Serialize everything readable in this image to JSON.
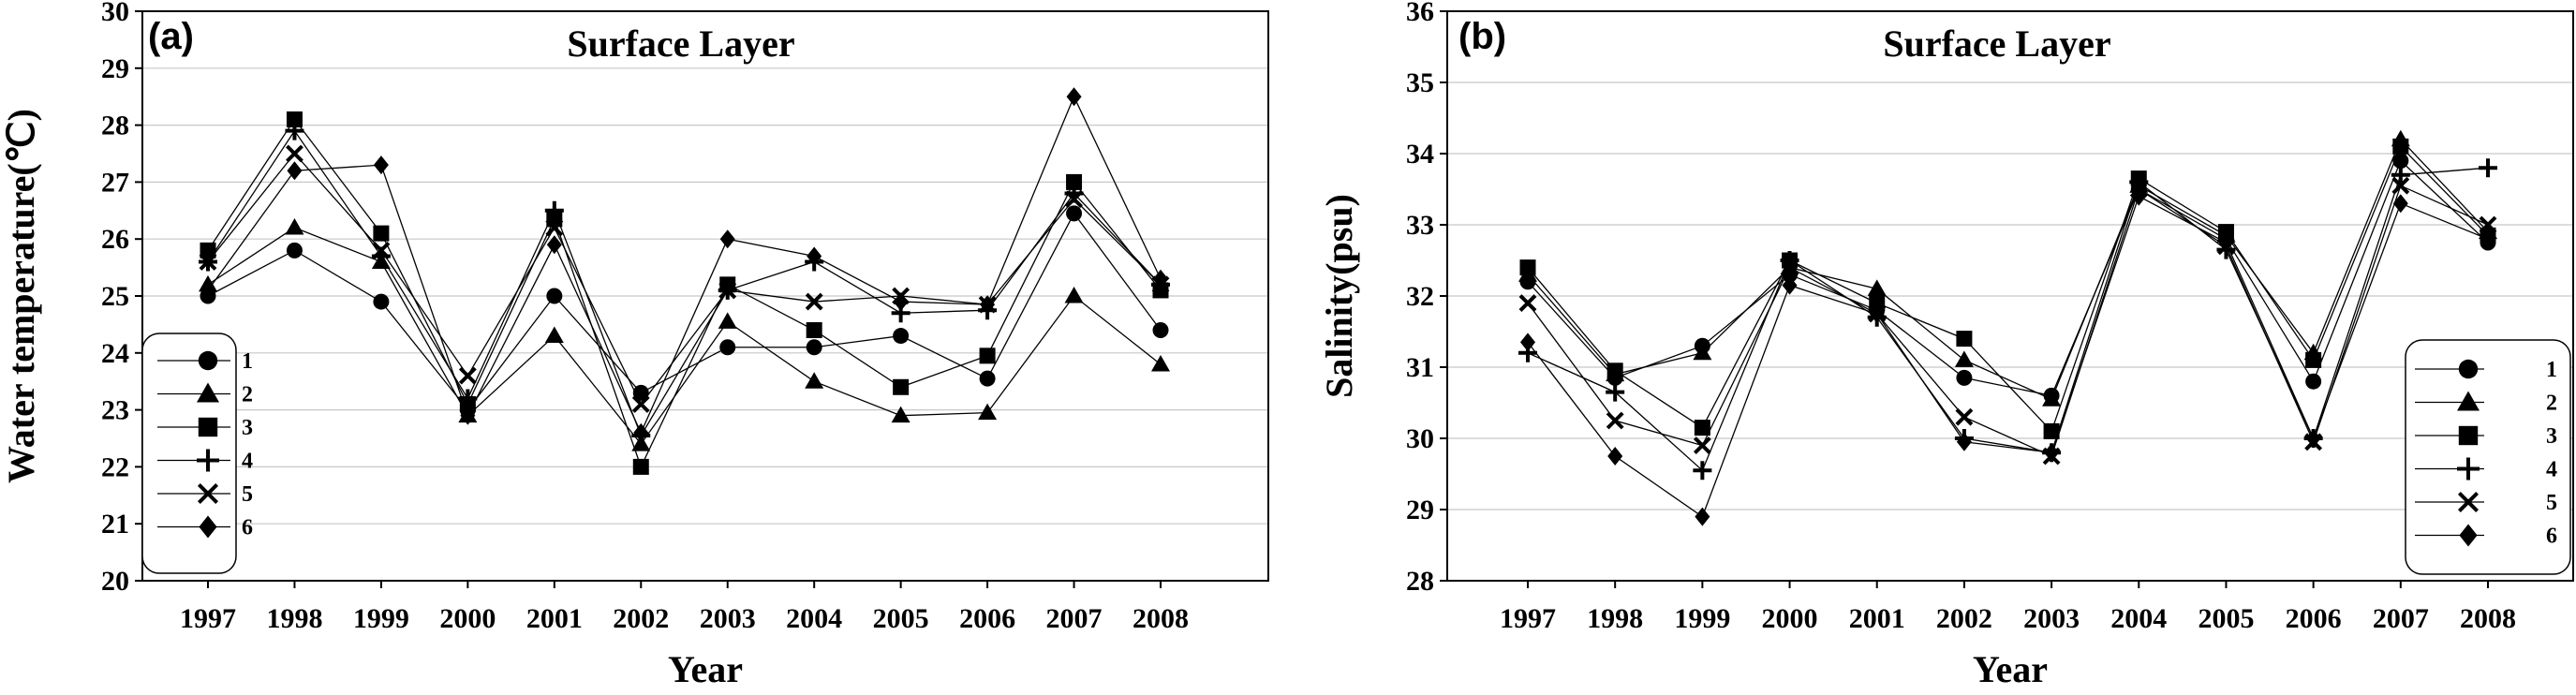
{
  "colors": {
    "line": "#000000",
    "grid": "#c8c8c8",
    "background": "#ffffff"
  },
  "chart_data": [
    {
      "panel_label": "(a)",
      "type": "line",
      "title": "Surface Layer",
      "xlabel": "Year",
      "ylabel": "Water temperature(℃)",
      "categories": [
        "1997",
        "1998",
        "1999",
        "2000",
        "2001",
        "2002",
        "2003",
        "2004",
        "2005",
        "2006",
        "2007",
        "2008"
      ],
      "ylim": [
        20,
        30
      ],
      "yticks": [
        20,
        21,
        22,
        23,
        24,
        25,
        26,
        27,
        28,
        29,
        30
      ],
      "grid": "horizontal",
      "legend_position": "bottom-left",
      "series": [
        {
          "name": "1",
          "marker": "circle",
          "values": [
            25.0,
            25.8,
            24.9,
            23.0,
            25.0,
            23.3,
            24.1,
            24.1,
            24.3,
            23.55,
            26.45,
            24.4
          ]
        },
        {
          "name": "2",
          "marker": "triangle",
          "values": [
            25.2,
            26.2,
            25.6,
            22.9,
            24.3,
            22.4,
            24.55,
            23.5,
            22.9,
            22.95,
            25.0,
            23.8
          ]
        },
        {
          "name": "3",
          "marker": "square",
          "values": [
            25.8,
            28.1,
            26.1,
            23.1,
            26.35,
            22.0,
            25.2,
            24.4,
            23.4,
            23.95,
            27.0,
            25.1
          ]
        },
        {
          "name": "4",
          "marker": "plus",
          "values": [
            25.6,
            27.9,
            25.7,
            23.2,
            26.5,
            22.55,
            25.1,
            25.6,
            24.7,
            24.75,
            26.8,
            25.2
          ]
        },
        {
          "name": "5",
          "marker": "x",
          "values": [
            25.6,
            27.5,
            25.8,
            23.6,
            26.2,
            23.1,
            25.1,
            24.9,
            25.0,
            24.85,
            26.7,
            25.2
          ]
        },
        {
          "name": "6",
          "marker": "diamond",
          "values": [
            25.1,
            27.2,
            27.3,
            22.9,
            25.9,
            22.6,
            26.0,
            25.7,
            24.9,
            24.85,
            28.5,
            25.3
          ]
        }
      ]
    },
    {
      "panel_label": "(b)",
      "type": "line",
      "title": "Surface Layer",
      "xlabel": "Year",
      "ylabel": "Salinity(psu)",
      "categories": [
        "1997",
        "1998",
        "1999",
        "2000",
        "2001",
        "2002",
        "2003",
        "2004",
        "2005",
        "2006",
        "2007",
        "2008"
      ],
      "ylim": [
        28,
        36
      ],
      "yticks": [
        28,
        29,
        30,
        31,
        32,
        33,
        34,
        35,
        36
      ],
      "grid": "horizontal",
      "legend_position": "bottom-right",
      "series": [
        {
          "name": "1",
          "marker": "circle",
          "values": [
            32.2,
            30.85,
            31.3,
            32.3,
            31.8,
            30.85,
            30.6,
            33.5,
            32.8,
            30.8,
            33.9,
            32.75
          ]
        },
        {
          "name": "2",
          "marker": "triangle",
          "values": [
            32.3,
            30.9,
            31.2,
            32.4,
            32.1,
            31.1,
            30.55,
            33.55,
            32.85,
            31.2,
            34.2,
            32.9
          ]
        },
        {
          "name": "3",
          "marker": "square",
          "values": [
            32.4,
            30.95,
            30.15,
            32.5,
            31.9,
            31.4,
            30.1,
            33.65,
            32.9,
            31.1,
            34.1,
            32.85
          ]
        },
        {
          "name": "4",
          "marker": "plus",
          "values": [
            31.2,
            30.65,
            29.55,
            32.5,
            31.7,
            30.0,
            29.8,
            33.6,
            32.65,
            30.0,
            33.7,
            33.8
          ]
        },
        {
          "name": "5",
          "marker": "x",
          "values": [
            31.9,
            30.25,
            29.9,
            32.4,
            31.75,
            30.3,
            29.75,
            33.5,
            32.7,
            29.95,
            33.55,
            33.0
          ]
        },
        {
          "name": "6",
          "marker": "diamond",
          "values": [
            31.35,
            29.75,
            28.9,
            32.15,
            31.75,
            29.95,
            29.8,
            33.4,
            32.75,
            30.0,
            33.3,
            32.8
          ]
        }
      ]
    }
  ]
}
